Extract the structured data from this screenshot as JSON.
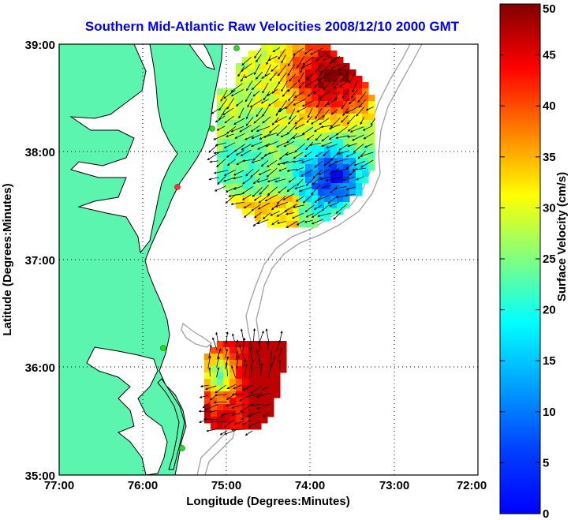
{
  "title": "Southern Mid-Atlantic Raw Velocities 2008/12/10 2000 GMT",
  "x_axis": {
    "label": "Longitude (Degrees:Minutes)",
    "ticks": [
      "77:00",
      "76:00",
      "75:00",
      "74:00",
      "73:00",
      "72:00"
    ]
  },
  "y_axis": {
    "label": "Latitude (Degrees:Minutes)",
    "ticks": [
      "39:00",
      "38:00",
      "37:00",
      "36:00",
      "35:00"
    ]
  },
  "colorbar": {
    "label": "Surface Velocity (cm/s)",
    "ticks": [
      "50",
      "45",
      "40",
      "35",
      "30",
      "25",
      "20",
      "15",
      "10",
      "5",
      "0"
    ],
    "range": [
      0,
      50
    ],
    "colormap": "jet"
  },
  "map": {
    "lon_range": [
      -77,
      -72
    ],
    "lat_range": [
      35,
      39
    ],
    "land_color": "#5cf5b0",
    "water_color": "#ffffff",
    "bathymetry_color": "#a0a0a0",
    "grid": "dotted",
    "station_colors": [
      "#22dd22",
      "#ff3333"
    ]
  },
  "regions": [
    {
      "name": "northern-coverage",
      "lon_range": [
        -75.1,
        -73.2
      ],
      "lat_range": [
        37.3,
        39.0
      ]
    },
    {
      "name": "southern-coverage",
      "lon_range": [
        -75.2,
        -74.2
      ],
      "lat_range": [
        35.4,
        36.3
      ]
    }
  ]
}
